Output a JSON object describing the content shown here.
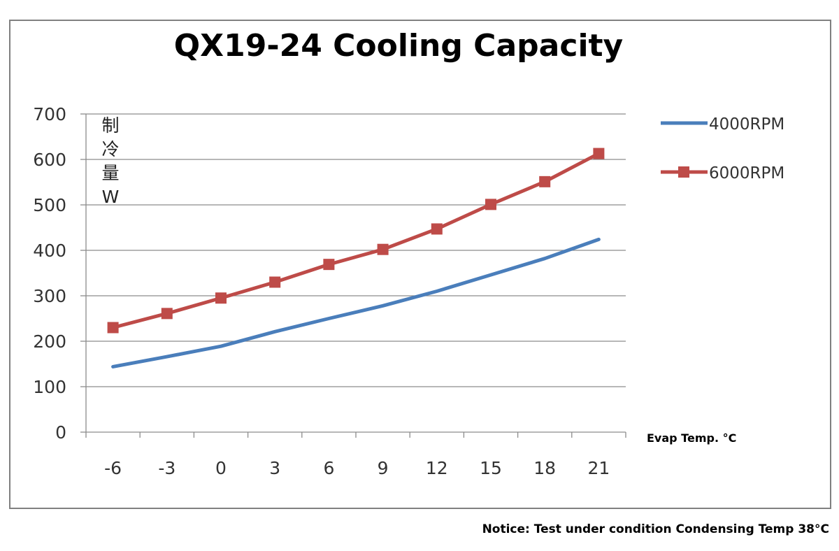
{
  "chart_data": {
    "type": "line",
    "title": "QX19-24 Cooling Capacity",
    "xlabel": "Evap Temp. °C",
    "ylabel_chars": [
      "制",
      "冷",
      "量",
      "W"
    ],
    "x": [
      -6,
      -3,
      0,
      3,
      6,
      9,
      12,
      15,
      18,
      21
    ],
    "x_tick_labels": [
      "-6",
      "-3",
      "0",
      "3",
      "6",
      "9",
      "12",
      "15",
      "18",
      "21"
    ],
    "y_ticks": [
      0,
      100,
      200,
      300,
      400,
      500,
      600,
      700
    ],
    "ylim": [
      0,
      700
    ],
    "grid": "horizontal",
    "legend": "right",
    "series": [
      {
        "name": "4000RPM",
        "color": "#4a7ebb",
        "marker": "none",
        "values": [
          144,
          166,
          189,
          221,
          250,
          278,
          310,
          346,
          382,
          424
        ]
      },
      {
        "name": "6000RPM",
        "color": "#be4b48",
        "marker": "square",
        "values": [
          230,
          261,
          295,
          330,
          369,
          402,
          447,
          501,
          551,
          613
        ]
      }
    ]
  },
  "notice": "Notice: Test under condition Condensing Temp 38°C"
}
